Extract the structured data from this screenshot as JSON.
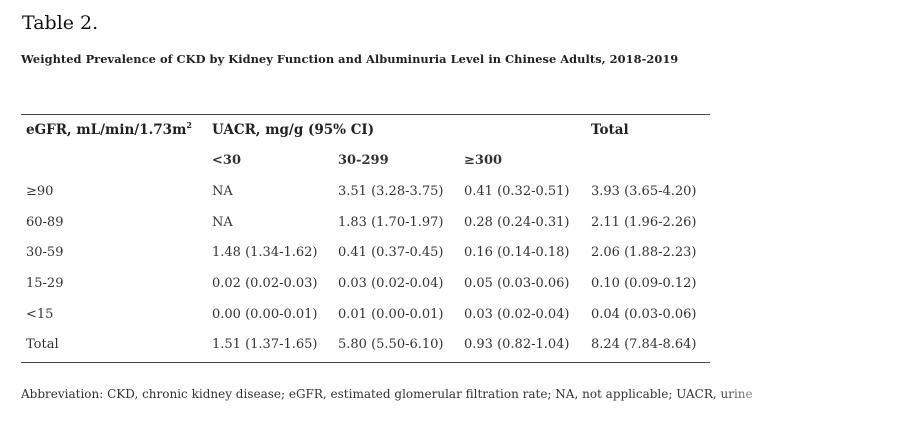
{
  "table_label": "Table 2.",
  "caption": "Weighted Prevalence of CKD by Kidney Function and Albuminuria Level in Chinese Adults, 2018-2019",
  "header": {
    "col0": "eGFR, mL/min/1.73m",
    "col0_sup": "2",
    "group": "UACR, mg/g (95% CI)",
    "total": "Total",
    "sub": [
      "<30",
      "30-299",
      "≥300"
    ]
  },
  "rows": [
    {
      "label": "≥90",
      "c1": "NA",
      "c2": "3.51 (3.28-3.75)",
      "c3": "0.41 (0.32-0.51)",
      "total": "3.93 (3.65-4.20)"
    },
    {
      "label": "60-89",
      "c1": "NA",
      "c2": "1.83 (1.70-1.97)",
      "c3": "0.28 (0.24-0.31)",
      "total": "2.11 (1.96-2.26)"
    },
    {
      "label": "30-59",
      "c1": "1.48 (1.34-1.62)",
      "c2": "0.41 (0.37-0.45)",
      "c3": "0.16 (0.14-0.18)",
      "total": "2.06 (1.88-2.23)"
    },
    {
      "label": "15-29",
      "c1": "0.02 (0.02-0.03)",
      "c2": "0.03 (0.02-0.04)",
      "c3": "0.05 (0.03-0.06)",
      "total": "0.10 (0.09-0.12)"
    },
    {
      "label": "<15",
      "c1": "0.00 (0.00-0.01)",
      "c2": "0.01 (0.00-0.01)",
      "c3": "0.03 (0.02-0.04)",
      "total": "0.04 (0.03-0.06)"
    },
    {
      "label": "Total",
      "c1": "1.51 (1.37-1.65)",
      "c2": "5.80 (5.50-6.10)",
      "c3": "0.93 (0.82-1.04)",
      "total": "8.24 (7.84-8.64)"
    }
  ],
  "footnote": "Abbreviation: CKD, chronic kidney disease; eGFR, estimated glomerular filtration rate; NA, not applicable; UACR, urine"
}
